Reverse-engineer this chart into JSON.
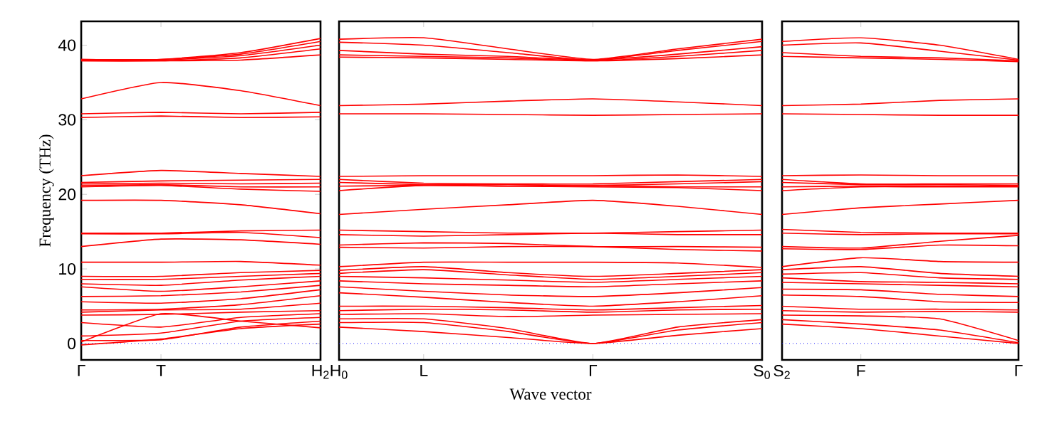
{
  "chart_data": [
    {
      "type": "line",
      "ylabel": "Frequency (THz)",
      "color": "#ff0000",
      "categories": [
        "Γ",
        "T",
        null,
        "H$_{2}$"
      ],
      "ylim": [
        -2.2,
        43.2
      ],
      "yticks": [
        0,
        10,
        20,
        30,
        40
      ],
      "ref_lines": [
        {
          "axis": "y",
          "value": 0,
          "color": "#0000ff",
          "line_style": "dotted"
        }
      ],
      "series": [
        {
          "values": [
            38.1,
            38.1,
            39.0,
            40.9
          ]
        },
        {
          "values": [
            38.1,
            38.1,
            38.8,
            40.5
          ]
        },
        {
          "values": [
            38.0,
            38.0,
            38.6,
            40.0
          ]
        },
        {
          "values": [
            37.9,
            37.9,
            38.3,
            39.5
          ]
        },
        {
          "values": [
            37.9,
            37.9,
            38.0,
            38.7
          ]
        },
        {
          "values": [
            32.8,
            35.0,
            33.9,
            31.9
          ]
        },
        {
          "values": [
            30.8,
            31.0,
            30.8,
            31.0
          ]
        },
        {
          "values": [
            30.3,
            30.5,
            30.3,
            30.4
          ]
        },
        {
          "values": [
            22.5,
            23.2,
            22.8,
            22.4
          ]
        },
        {
          "values": [
            21.6,
            21.8,
            21.9,
            22.0
          ]
        },
        {
          "values": [
            21.4,
            21.5,
            21.4,
            21.5
          ]
        },
        {
          "values": [
            21.2,
            21.3,
            21.0,
            21.0
          ]
        },
        {
          "values": [
            21.0,
            21.2,
            20.7,
            20.4
          ]
        },
        {
          "values": [
            19.2,
            19.2,
            18.6,
            17.4
          ]
        },
        {
          "values": [
            14.8,
            14.8,
            15.1,
            15.2
          ]
        },
        {
          "values": [
            14.7,
            14.7,
            14.9,
            14.2
          ]
        },
        {
          "values": [
            13.0,
            14.0,
            13.9,
            13.3
          ]
        },
        {
          "values": [
            10.9,
            10.9,
            11.0,
            10.5
          ]
        },
        {
          "values": [
            9.0,
            9.0,
            9.5,
            9.8
          ]
        },
        {
          "values": [
            8.6,
            8.6,
            9.0,
            9.4
          ]
        },
        {
          "values": [
            8.0,
            7.8,
            8.5,
            9.0
          ]
        },
        {
          "values": [
            7.6,
            7.0,
            7.6,
            8.4
          ]
        },
        {
          "values": [
            6.3,
            6.4,
            6.9,
            7.8
          ]
        },
        {
          "values": [
            5.6,
            5.4,
            6.0,
            7.2
          ]
        },
        {
          "values": [
            4.5,
            4.6,
            5.2,
            6.4
          ]
        },
        {
          "values": [
            4.2,
            4.5,
            4.6,
            5.4
          ]
        },
        {
          "values": [
            3.8,
            3.9,
            4.2,
            4.4
          ]
        },
        {
          "values": [
            2.8,
            2.2,
            3.5,
            4.0
          ]
        },
        {
          "values": [
            1.0,
            1.4,
            3.0,
            3.5
          ]
        },
        {
          "values": [
            0.4,
            0.5,
            2.2,
            3.0
          ]
        },
        {
          "values": [
            -0.2,
            0.6,
            2.0,
            2.6
          ]
        },
        {
          "values": [
            0.2,
            4.0,
            3.0,
            2.1
          ]
        }
      ]
    },
    {
      "type": "line",
      "xlabel": "Wave vector",
      "color": "#ff0000",
      "categories": [
        "H$_{0}$",
        "L",
        null,
        "Γ",
        null,
        "S$_{0}$"
      ],
      "ylim": [
        -2.2,
        43.2
      ],
      "tick_labels": "x",
      "ref_lines": [
        {
          "axis": "y",
          "value": 0,
          "color": "#0000ff",
          "line_style": "dotted"
        }
      ],
      "series": [
        {
          "values": [
            40.8,
            41.0,
            39.5,
            38.1,
            39.5,
            40.8
          ]
        },
        {
          "values": [
            40.4,
            40.0,
            39.0,
            38.0,
            39.3,
            40.5
          ]
        },
        {
          "values": [
            39.3,
            38.8,
            38.5,
            38.0,
            38.8,
            39.8
          ]
        },
        {
          "values": [
            38.7,
            38.5,
            38.3,
            37.9,
            38.5,
            39.3
          ]
        },
        {
          "values": [
            38.4,
            38.3,
            38.1,
            37.9,
            38.2,
            38.7
          ]
        },
        {
          "values": [
            31.9,
            32.1,
            32.5,
            32.8,
            32.4,
            31.9
          ]
        },
        {
          "values": [
            30.8,
            30.8,
            30.7,
            30.6,
            30.7,
            30.8
          ]
        },
        {
          "values": [
            22.4,
            22.5,
            22.5,
            22.5,
            22.6,
            22.4
          ]
        },
        {
          "values": [
            22.0,
            21.5,
            21.4,
            21.4,
            21.7,
            22.0
          ]
        },
        {
          "values": [
            21.6,
            21.3,
            21.3,
            21.2,
            21.4,
            21.7
          ]
        },
        {
          "values": [
            21.1,
            21.2,
            21.1,
            21.2,
            21.0,
            21.0
          ]
        },
        {
          "values": [
            20.5,
            21.2,
            21.1,
            21.0,
            20.9,
            20.5
          ]
        },
        {
          "values": [
            17.3,
            18.0,
            18.6,
            19.2,
            18.4,
            17.3
          ]
        },
        {
          "values": [
            15.2,
            15.0,
            14.8,
            14.8,
            15.0,
            15.2
          ]
        },
        {
          "values": [
            14.6,
            14.4,
            14.6,
            14.8,
            14.6,
            14.6
          ]
        },
        {
          "values": [
            13.2,
            13.5,
            13.4,
            13.0,
            13.0,
            12.9
          ]
        },
        {
          "values": [
            12.9,
            12.8,
            13.0,
            13.0,
            12.6,
            12.4
          ]
        },
        {
          "values": [
            10.3,
            10.9,
            10.9,
            10.9,
            10.8,
            10.2
          ]
        },
        {
          "values": [
            9.8,
            10.3,
            9.5,
            9.0,
            9.4,
            9.9
          ]
        },
        {
          "values": [
            9.4,
            9.9,
            9.2,
            8.6,
            9.0,
            9.5
          ]
        },
        {
          "values": [
            9.0,
            8.8,
            8.5,
            8.2,
            8.6,
            9.0
          ]
        },
        {
          "values": [
            8.4,
            8.0,
            7.8,
            7.6,
            8.0,
            8.4
          ]
        },
        {
          "values": [
            7.6,
            7.0,
            6.5,
            6.3,
            6.8,
            7.5
          ]
        },
        {
          "values": [
            6.8,
            6.2,
            5.5,
            5.0,
            5.6,
            6.4
          ]
        },
        {
          "values": [
            5.0,
            5.0,
            4.8,
            4.5,
            4.8,
            5.1
          ]
        },
        {
          "values": [
            4.4,
            4.6,
            4.5,
            4.2,
            4.5,
            4.6
          ]
        },
        {
          "values": [
            3.9,
            4.0,
            3.6,
            3.8,
            3.9,
            4.0
          ]
        },
        {
          "values": [
            3.3,
            3.3,
            2.0,
            0.0,
            2.2,
            3.2
          ]
        },
        {
          "values": [
            2.8,
            2.8,
            1.6,
            0.0,
            1.8,
            2.8
          ]
        },
        {
          "values": [
            2.2,
            1.6,
            0.8,
            0.0,
            1.1,
            2.0
          ]
        }
      ]
    },
    {
      "type": "line",
      "color": "#ff0000",
      "categories": [
        "S$_{2}$",
        "F",
        null,
        "Γ"
      ],
      "ylim": [
        -2.2,
        43.2
      ],
      "tick_labels": "x",
      "ref_lines": [
        {
          "axis": "y",
          "value": 0,
          "color": "#0000ff",
          "line_style": "dotted"
        }
      ],
      "series": [
        {
          "values": [
            40.5,
            41.0,
            40.0,
            38.1
          ]
        },
        {
          "values": [
            40.0,
            40.3,
            39.2,
            38.0
          ]
        },
        {
          "values": [
            39.0,
            38.5,
            38.3,
            37.9
          ]
        },
        {
          "values": [
            38.5,
            38.3,
            38.1,
            37.8
          ]
        },
        {
          "values": [
            31.9,
            32.1,
            32.6,
            32.8
          ]
        },
        {
          "values": [
            30.8,
            30.7,
            30.6,
            30.6
          ]
        },
        {
          "values": [
            22.5,
            22.6,
            22.5,
            22.5
          ]
        },
        {
          "values": [
            22.0,
            21.4,
            21.4,
            21.4
          ]
        },
        {
          "values": [
            21.6,
            21.3,
            21.3,
            21.2
          ]
        },
        {
          "values": [
            21.0,
            21.1,
            21.1,
            21.1
          ]
        },
        {
          "values": [
            20.5,
            21.0,
            21.0,
            21.0
          ]
        },
        {
          "values": [
            17.3,
            18.2,
            18.7,
            19.2
          ]
        },
        {
          "values": [
            15.3,
            14.9,
            14.8,
            14.8
          ]
        },
        {
          "values": [
            14.8,
            14.6,
            14.7,
            14.7
          ]
        },
        {
          "values": [
            13.0,
            12.8,
            13.7,
            14.5
          ]
        },
        {
          "values": [
            12.7,
            12.6,
            13.2,
            13.1
          ]
        },
        {
          "values": [
            10.3,
            11.5,
            11.0,
            10.9
          ]
        },
        {
          "values": [
            9.9,
            10.3,
            9.4,
            9.0
          ]
        },
        {
          "values": [
            9.3,
            9.5,
            8.8,
            8.6
          ]
        },
        {
          "values": [
            8.8,
            8.3,
            8.2,
            8.0
          ]
        },
        {
          "values": [
            8.2,
            8.0,
            7.8,
            7.6
          ]
        },
        {
          "values": [
            7.3,
            7.2,
            6.6,
            6.3
          ]
        },
        {
          "values": [
            6.5,
            6.3,
            5.6,
            5.5
          ]
        },
        {
          "values": [
            5.0,
            4.6,
            4.6,
            4.5
          ]
        },
        {
          "values": [
            4.4,
            4.2,
            4.3,
            4.2
          ]
        },
        {
          "values": [
            3.8,
            3.7,
            3.3,
            0.4
          ]
        },
        {
          "values": [
            3.2,
            2.6,
            1.8,
            0.1
          ]
        },
        {
          "values": [
            2.6,
            2.0,
            1.0,
            0.0
          ]
        }
      ]
    }
  ]
}
